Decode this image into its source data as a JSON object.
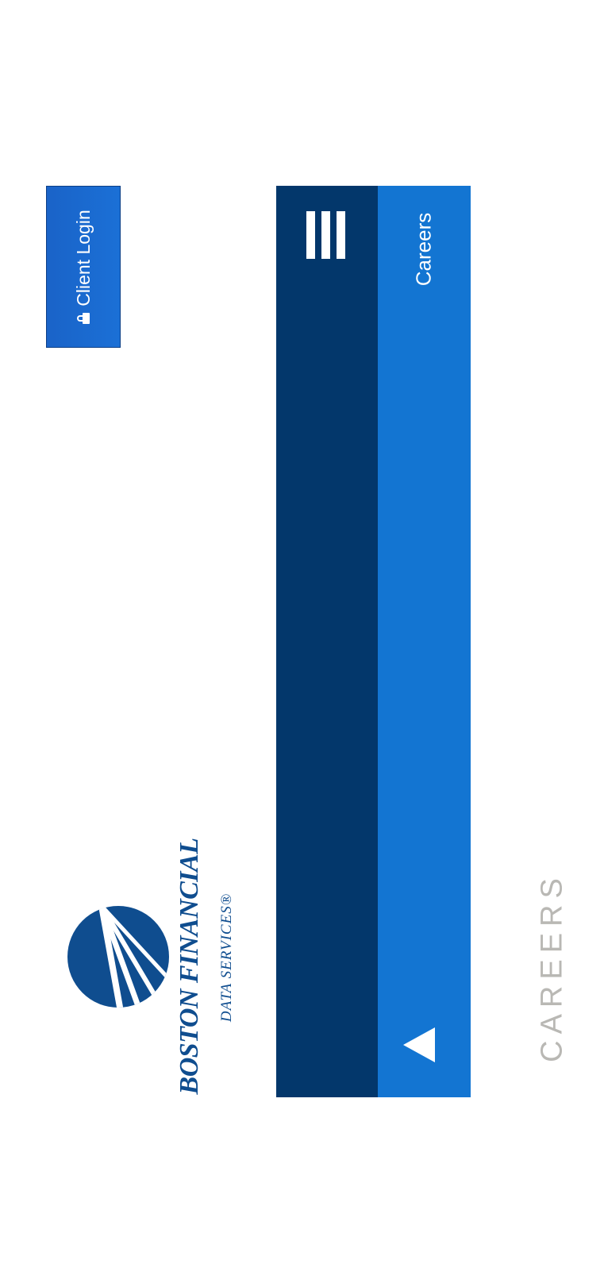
{
  "header": {
    "login_label": "Client Login",
    "brand_line1": "BOSTON FINANCIAL",
    "brand_line2": "DATA SERVICES®"
  },
  "nav": {
    "menu_icon": "hamburger-icon",
    "careers_label": "Careers",
    "play_icon": "play-icon"
  },
  "page": {
    "heading": "CAREERS"
  },
  "colors": {
    "brand_dark": "#03376b",
    "brand_blue": "#1375d2",
    "heading_gray": "#b9b8b4"
  }
}
